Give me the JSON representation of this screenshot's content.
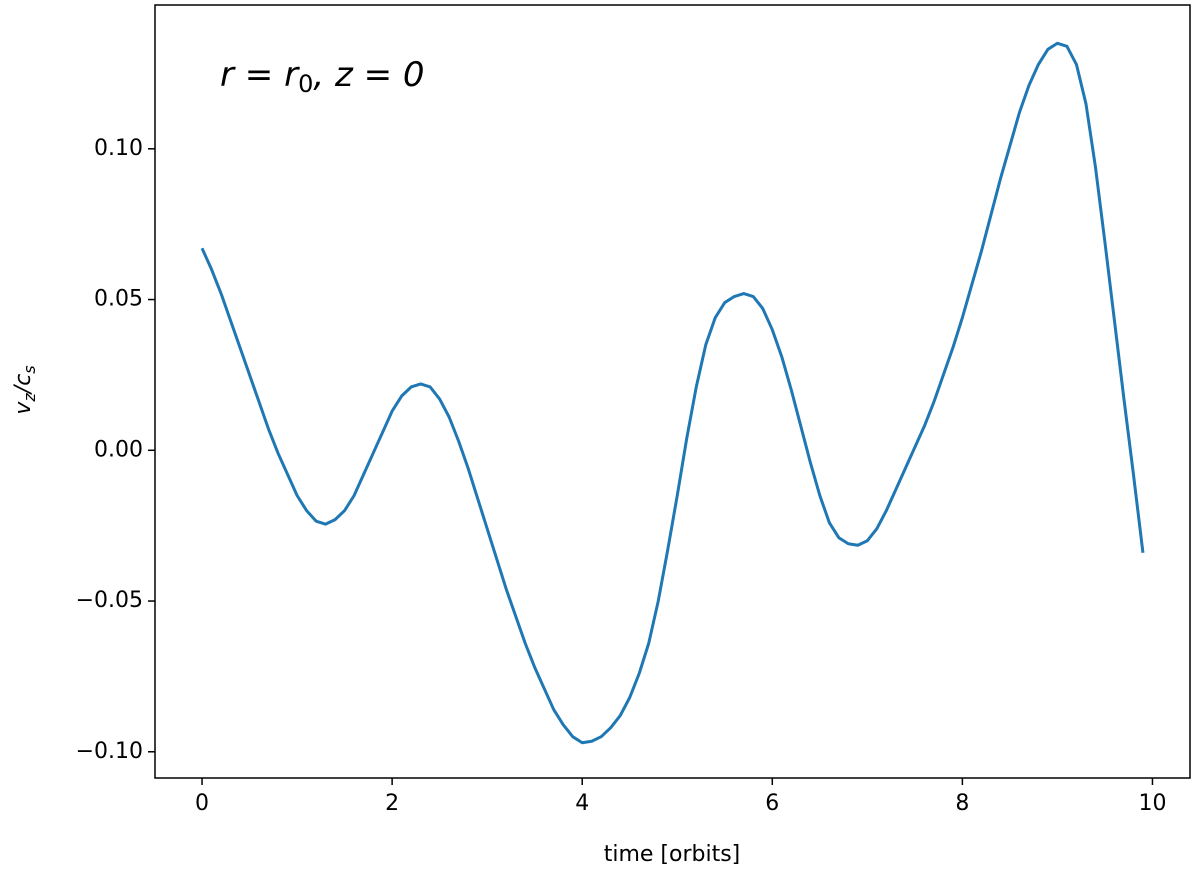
{
  "chart_data": {
    "type": "line",
    "annotation": [
      "r = r",
      "0",
      ", z = 0"
    ],
    "xlabel": "time [orbits]",
    "ylabel": [
      "v",
      "z",
      "/c",
      "s"
    ],
    "xlim": [
      -0.495,
      10.395
    ],
    "ylim": [
      -0.1087,
      0.1477
    ],
    "xticks": [
      0,
      2,
      4,
      6,
      8,
      10
    ],
    "yticks": [
      {
        "value": -0.1,
        "label": "−0.10"
      },
      {
        "value": -0.05,
        "label": "−0.05"
      },
      {
        "value": 0,
        "label": "0.00"
      },
      {
        "value": 0.05,
        "label": "0.05"
      },
      {
        "value": 0.1,
        "label": "0.10"
      }
    ],
    "x": [
      0,
      0.1,
      0.2,
      0.3,
      0.4,
      0.5,
      0.6,
      0.7,
      0.8,
      0.9,
      1,
      1.1,
      1.2,
      1.3,
      1.4,
      1.5,
      1.6,
      1.7,
      1.8,
      1.9,
      2,
      2.1,
      2.2,
      2.3,
      2.4,
      2.5,
      2.6,
      2.7,
      2.8,
      2.9,
      3,
      3.1,
      3.2,
      3.3,
      3.4,
      3.5,
      3.6,
      3.7,
      3.8,
      3.9,
      4,
      4.1,
      4.2,
      4.3,
      4.4,
      4.5,
      4.6,
      4.7,
      4.8,
      4.9,
      5,
      5.1,
      5.2,
      5.3,
      5.4,
      5.5,
      5.6,
      5.7,
      5.8,
      5.9,
      6,
      6.1,
      6.2,
      6.3,
      6.4,
      6.5,
      6.6,
      6.7,
      6.8,
      6.9,
      7,
      7.1,
      7.2,
      7.3,
      7.4,
      7.5,
      7.6,
      7.7,
      7.8,
      7.9,
      8,
      8.1,
      8.2,
      8.3,
      8.4,
      8.5,
      8.6,
      8.7,
      8.8,
      8.9,
      9,
      9.1,
      9.2,
      9.3,
      9.4,
      9.5,
      9.6,
      9.7,
      9.8,
      9.9
    ],
    "series": [
      {
        "name": "vz",
        "color": "#1f77b4",
        "values": [
          0.067,
          0.06,
          0.052,
          0.043,
          0.034,
          0.025,
          0.016,
          0.007,
          -0.001,
          -0.008,
          -0.015,
          -0.02,
          -0.0235,
          -0.0245,
          -0.023,
          -0.02,
          -0.015,
          -0.008,
          -0.001,
          0.006,
          0.013,
          0.018,
          0.021,
          0.022,
          0.021,
          0.017,
          0.011,
          0.003,
          -0.006,
          -0.016,
          -0.026,
          -0.036,
          -0.046,
          -0.055,
          -0.064,
          -0.072,
          -0.079,
          -0.086,
          -0.091,
          -0.095,
          -0.097,
          -0.0965,
          -0.095,
          -0.092,
          -0.088,
          -0.082,
          -0.074,
          -0.064,
          -0.05,
          -0.033,
          -0.015,
          0.004,
          0.021,
          0.035,
          0.044,
          0.049,
          0.051,
          0.052,
          0.051,
          0.047,
          0.04,
          0.031,
          0.02,
          0.008,
          -0.004,
          -0.015,
          -0.024,
          -0.029,
          -0.031,
          -0.0315,
          -0.03,
          -0.026,
          -0.02,
          -0.013,
          -0.006,
          0.001,
          0.008,
          0.016,
          0.025,
          0.034,
          0.044,
          0.055,
          0.066,
          0.078,
          0.09,
          0.101,
          0.112,
          0.121,
          0.128,
          0.133,
          0.135,
          0.134,
          0.128,
          0.115,
          0.094,
          0.069,
          0.043,
          0.017,
          -0.008,
          -0.034
        ]
      }
    ]
  }
}
